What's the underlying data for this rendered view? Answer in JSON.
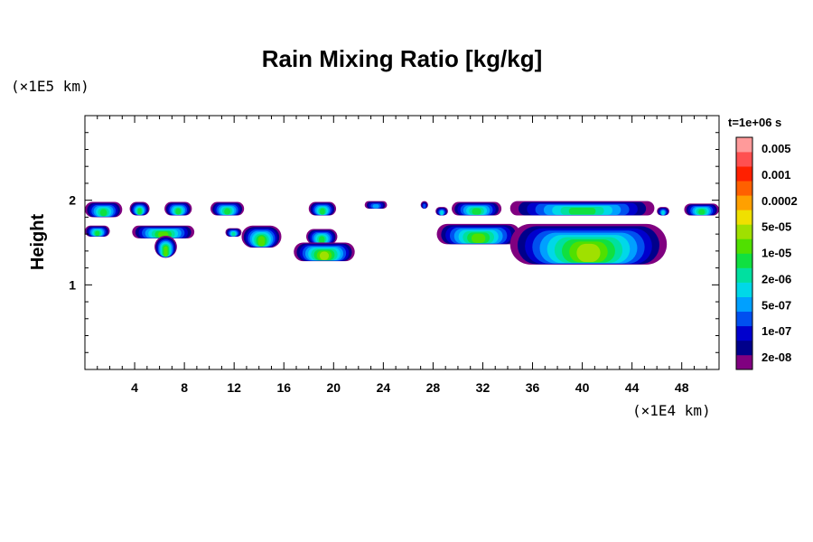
{
  "chart_data": {
    "type": "contour",
    "title": "Rain Mixing Ratio [kg/kg]",
    "time_label": "t=1e+06 s",
    "ylabel": "Height",
    "x_unit": "(×1E4 km)",
    "y_unit": "(×1E5 km)",
    "xlim": [
      0,
      51
    ],
    "ylim": [
      0,
      3
    ],
    "x_ticks": [
      4,
      8,
      12,
      16,
      20,
      24,
      28,
      32,
      36,
      40,
      44,
      48
    ],
    "y_ticks": [
      1,
      2
    ],
    "colorbar": {
      "labels": [
        "0.005",
        "0.001",
        "0.0002",
        "5e-05",
        "1e-05",
        "2e-06",
        "5e-07",
        "1e-07",
        "2e-08"
      ],
      "colors": [
        "#800080",
        "#00008b",
        "#0000cd",
        "#0050f0",
        "#00a0ff",
        "#00d8e8",
        "#00e0a0",
        "#10e040",
        "#50e000",
        "#a0e000",
        "#f0e000",
        "#ffa000",
        "#ff6000",
        "#ff2000",
        "#ff5050",
        "#ff9a9a"
      ]
    },
    "cloud_regions": [
      {
        "x0": 0.0,
        "x1": 3.0,
        "y0": 1.8,
        "y1": 1.98,
        "peak": 7
      },
      {
        "x0": 3.6,
        "x1": 5.2,
        "y0": 1.82,
        "y1": 1.98,
        "peak": 7
      },
      {
        "x0": 6.4,
        "x1": 8.6,
        "y0": 1.82,
        "y1": 1.98,
        "peak": 7
      },
      {
        "x0": 10.1,
        "x1": 12.8,
        "y0": 1.82,
        "y1": 1.98,
        "peak": 7
      },
      {
        "x0": 18.0,
        "x1": 20.2,
        "y0": 1.82,
        "y1": 1.98,
        "peak": 7
      },
      {
        "x0": 22.5,
        "x1": 24.3,
        "y0": 1.9,
        "y1": 1.99,
        "peak": 4
      },
      {
        "x0": 27.0,
        "x1": 27.6,
        "y0": 1.9,
        "y1": 1.99,
        "peak": 3
      },
      {
        "x0": 28.2,
        "x1": 29.2,
        "y0": 1.82,
        "y1": 1.92,
        "peak": 5
      },
      {
        "x0": 29.5,
        "x1": 33.5,
        "y0": 1.82,
        "y1": 1.98,
        "peak": 7
      },
      {
        "x0": 34.2,
        "x1": 45.8,
        "y0": 1.82,
        "y1": 1.99,
        "peak": 7
      },
      {
        "x0": 46.0,
        "x1": 47.0,
        "y0": 1.82,
        "y1": 1.92,
        "peak": 5
      },
      {
        "x0": 48.2,
        "x1": 51.0,
        "y0": 1.82,
        "y1": 1.96,
        "peak": 7
      },
      {
        "x0": 0.0,
        "x1": 2.0,
        "y0": 1.57,
        "y1": 1.7,
        "peak": 7
      },
      {
        "x0": 3.8,
        "x1": 8.8,
        "y0": 1.55,
        "y1": 1.7,
        "peak": 8
      },
      {
        "x0": 5.6,
        "x1": 7.4,
        "y0": 1.32,
        "y1": 1.58,
        "peak": 8
      },
      {
        "x0": 11.3,
        "x1": 12.6,
        "y0": 1.57,
        "y1": 1.67,
        "peak": 6
      },
      {
        "x0": 12.6,
        "x1": 15.8,
        "y0": 1.44,
        "y1": 1.7,
        "peak": 8
      },
      {
        "x0": 17.8,
        "x1": 20.3,
        "y0": 1.48,
        "y1": 1.66,
        "peak": 7
      },
      {
        "x0": 16.8,
        "x1": 21.7,
        "y0": 1.28,
        "y1": 1.5,
        "peak": 9
      },
      {
        "x0": 28.3,
        "x1": 35.0,
        "y0": 1.48,
        "y1": 1.72,
        "peak": 8
      },
      {
        "x0": 34.2,
        "x1": 46.8,
        "y0": 1.24,
        "y1": 1.72,
        "peak": 9
      }
    ]
  }
}
